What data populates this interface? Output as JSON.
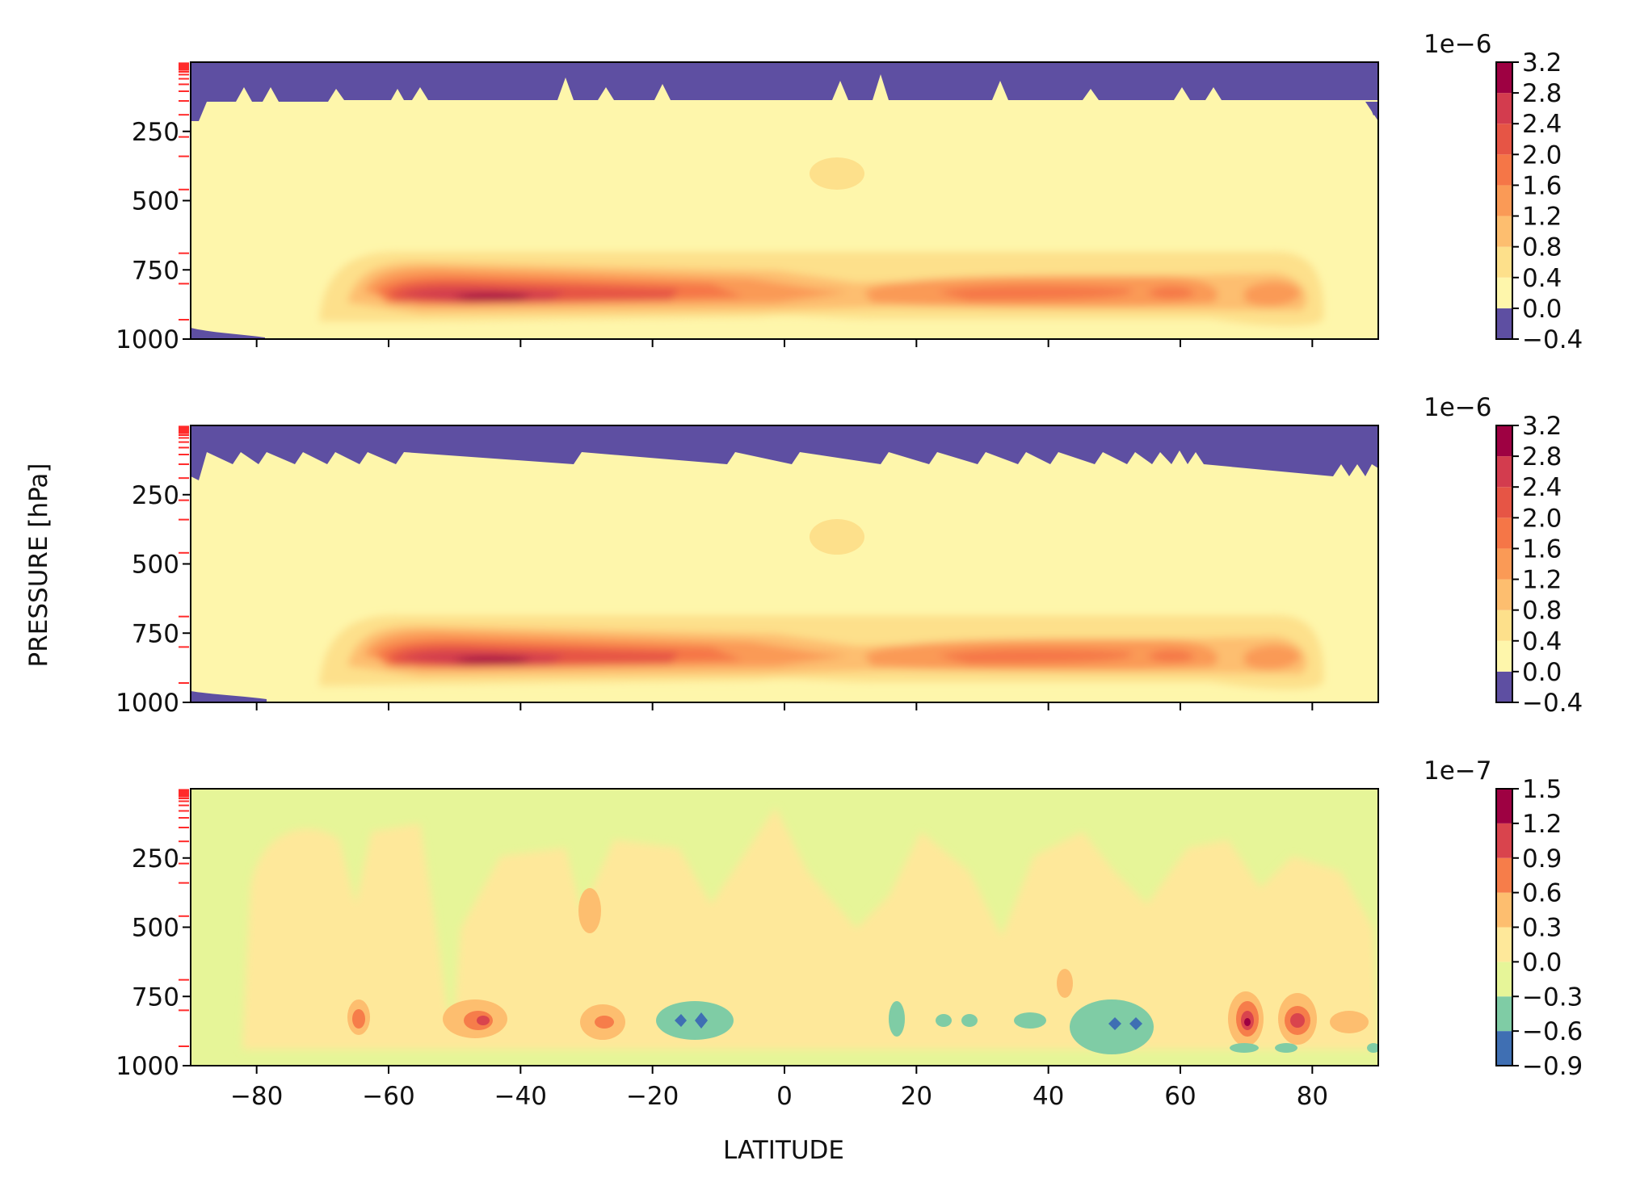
{
  "chart_data": [
    {
      "type": "contourf",
      "panel": "top",
      "colormap": "Spectral_r",
      "offset_text": "1e−6",
      "colorbar_ticks": [
        "3.2",
        "2.8",
        "2.4",
        "2.0",
        "1.6",
        "1.2",
        "0.8",
        "0.4",
        "0.0",
        "−0.4"
      ],
      "colorbar_levels": [
        -0.4,
        0.0,
        0.4,
        0.8,
        1.2,
        1.6,
        2.0,
        2.4,
        2.8,
        3.2
      ],
      "colors": [
        "#5e4fa2",
        "#fef6ab",
        "#fde08b",
        "#fdbe6f",
        "#fa9a56",
        "#f57647",
        "#e65545",
        "#d33c4e",
        "#9e0142"
      ],
      "xlim": [
        -90,
        90
      ],
      "ylim": [
        1000,
        0
      ],
      "yticks": [
        "250",
        "500",
        "750",
        "1000"
      ],
      "features": [
        {
          "level": 8,
          "lat": -40,
          "p": 850,
          "note": "maximum ~3.2e-6"
        },
        {
          "level": 5,
          "lat": 30,
          "p": 850
        },
        {
          "level": 5,
          "lat": 75,
          "p": 850
        },
        {
          "level": 2,
          "lat": 8,
          "p": 390
        },
        {
          "level": 0,
          "lat": -85,
          "p": 990,
          "note": "negative near surface"
        }
      ]
    },
    {
      "type": "contourf",
      "panel": "middle",
      "colormap": "Spectral_r",
      "offset_text": "1e−6",
      "colorbar_ticks": [
        "3.2",
        "2.8",
        "2.4",
        "2.0",
        "1.6",
        "1.2",
        "0.8",
        "0.4",
        "0.0",
        "−0.4"
      ],
      "colorbar_levels": [
        -0.4,
        0.0,
        0.4,
        0.8,
        1.2,
        1.6,
        2.0,
        2.4,
        2.8,
        3.2
      ],
      "colors": [
        "#5e4fa2",
        "#fef6ab",
        "#fde08b",
        "#fdbe6f",
        "#fa9a56",
        "#f57647",
        "#e65545",
        "#d33c4e",
        "#9e0142"
      ],
      "xlim": [
        -90,
        90
      ],
      "ylim": [
        1000,
        0
      ],
      "yticks": [
        "250",
        "500",
        "750",
        "1000"
      ],
      "ylabel": "PRESSURE [hPa]"
    },
    {
      "type": "contourf",
      "panel": "bottom",
      "colormap": "Spectral_r",
      "offset_text": "1e−7",
      "colorbar_ticks": [
        "1.5",
        "1.2",
        "0.9",
        "0.6",
        "0.3",
        "0.0",
        "−0.3",
        "−0.6",
        "−0.9"
      ],
      "colorbar_levels": [
        -0.9,
        -0.6,
        -0.3,
        0.0,
        0.3,
        0.6,
        0.9,
        1.2,
        1.5
      ],
      "colors": [
        "#3f6fb3",
        "#7fcca5",
        "#e6f598",
        "#fee89a",
        "#fdbe6f",
        "#f67d4a",
        "#d9444d",
        "#9e0142"
      ],
      "xlim": [
        -90,
        90
      ],
      "ylim": [
        1000,
        0
      ],
      "yticks": [
        "250",
        "500",
        "750",
        "1000"
      ],
      "xticks": [
        "−80",
        "−60",
        "−40",
        "−20",
        "0",
        "20",
        "40",
        "60",
        "80"
      ],
      "xlabel": "LATITUDE"
    }
  ]
}
